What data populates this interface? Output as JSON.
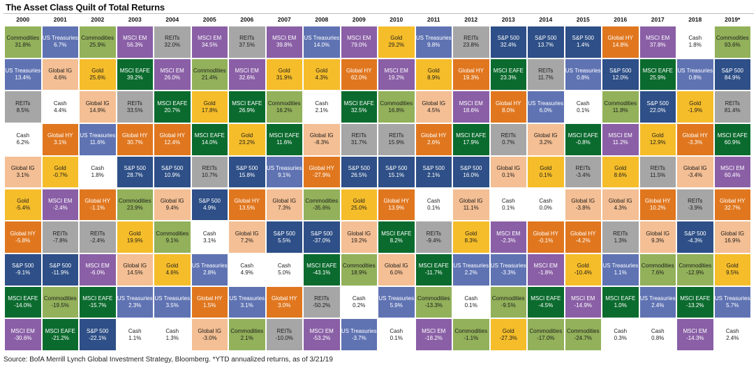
{
  "title": "The Asset Class Quilt of Total Returns",
  "source": "Source: BofA Merrill Lynch Global Investment Strategy, Bloomberg. *YTD annualized returns, as of 3/21/19",
  "colors": {
    "Commodities": "#92b15a",
    "US Treasuries": "#5f73b3",
    "Global IG": "#f4bf94",
    "MSCI EM": "#8a5fa6",
    "REITs": "#a6a6a6",
    "Gold": "#f5bd2a",
    "Cash": "#ffffff",
    "MSCI EAFE": "#0b6b2e",
    "Global HY": "#e0771f",
    "S&P 500": "#2e4f87"
  },
  "chart_data": {
    "type": "table",
    "title": "The Asset Class Quilt of Total Returns",
    "years": [
      "2000",
      "2001",
      "2002",
      "2003",
      "2004",
      "2005",
      "2006",
      "2007",
      "2008",
      "2009",
      "2010",
      "2011",
      "2012",
      "2013",
      "2014",
      "2015",
      "2016",
      "2017",
      "2018",
      "2019*"
    ],
    "columns": [
      [
        [
          "Commodities",
          "31.8%"
        ],
        [
          "US Treasuries",
          "13.4%"
        ],
        [
          "REITs",
          "8.5%"
        ],
        [
          "Cash",
          "6.2%"
        ],
        [
          "Global IG",
          "3.1%"
        ],
        [
          "Gold",
          "-5.4%"
        ],
        [
          "Global HY",
          "-5.8%"
        ],
        [
          "S&P 500",
          "-9.1%"
        ],
        [
          "MSCI EAFE",
          "-14.0%"
        ],
        [
          "MSCI EM",
          "-30.6%"
        ]
      ],
      [
        [
          "US Treasuries",
          "6.7%"
        ],
        [
          "Global IG",
          "4.6%"
        ],
        [
          "Cash",
          "4.4%"
        ],
        [
          "Global HY",
          "3.1%"
        ],
        [
          "Gold",
          "-0.7%"
        ],
        [
          "MSCI EM",
          "-2.4%"
        ],
        [
          "REITs",
          "-7.8%"
        ],
        [
          "S&P 500",
          "-11.9%"
        ],
        [
          "Commodities",
          "-19.5%"
        ],
        [
          "MSCI EAFE",
          "-21.2%"
        ]
      ],
      [
        [
          "Commodities",
          "25.9%"
        ],
        [
          "Gold",
          "25.6%"
        ],
        [
          "Global IG",
          "14.9%"
        ],
        [
          "US Treasuries",
          "11.6%"
        ],
        [
          "Cash",
          "1.8%"
        ],
        [
          "Global HY",
          "-1.1%"
        ],
        [
          "REITs",
          "-2.4%"
        ],
        [
          "MSCI EM",
          "-6.0%"
        ],
        [
          "MSCI EAFE",
          "-15.7%"
        ],
        [
          "S&P 500",
          "-22.1%"
        ]
      ],
      [
        [
          "MSCI EM",
          "56.3%"
        ],
        [
          "MSCI EAFE",
          "39.2%"
        ],
        [
          "REITs",
          "33.5%"
        ],
        [
          "Global HY",
          "30.7%"
        ],
        [
          "S&P 500",
          "28.7%"
        ],
        [
          "Commodities",
          "23.9%"
        ],
        [
          "Gold",
          "19.9%"
        ],
        [
          "Global IG",
          "14.5%"
        ],
        [
          "US Treasuries",
          "2.3%"
        ],
        [
          "Cash",
          "1.1%"
        ]
      ],
      [
        [
          "REITs",
          "32.0%"
        ],
        [
          "MSCI EM",
          "26.0%"
        ],
        [
          "MSCI EAFE",
          "20.7%"
        ],
        [
          "Global HY",
          "12.4%"
        ],
        [
          "S&P 500",
          "10.9%"
        ],
        [
          "Global IG",
          "9.4%"
        ],
        [
          "Commodities",
          "9.1%"
        ],
        [
          "Gold",
          "4.6%"
        ],
        [
          "US Treasuries",
          "3.5%"
        ],
        [
          "Cash",
          "1.3%"
        ]
      ],
      [
        [
          "MSCI EM",
          "34.5%"
        ],
        [
          "Commodities",
          "21.4%"
        ],
        [
          "Gold",
          "17.8%"
        ],
        [
          "MSCI EAFE",
          "14.0%"
        ],
        [
          "REITs",
          "10.7%"
        ],
        [
          "S&P 500",
          "4.9%"
        ],
        [
          "Cash",
          "3.1%"
        ],
        [
          "US Treasuries",
          "2.8%"
        ],
        [
          "Global HY",
          "1.5%"
        ],
        [
          "Global IG",
          "-3.0%"
        ]
      ],
      [
        [
          "REITs",
          "37.5%"
        ],
        [
          "MSCI EM",
          "32.6%"
        ],
        [
          "MSCI EAFE",
          "26.9%"
        ],
        [
          "Gold",
          "23.2%"
        ],
        [
          "S&P 500",
          "15.8%"
        ],
        [
          "Global HY",
          "13.5%"
        ],
        [
          "Global IG",
          "7.2%"
        ],
        [
          "Cash",
          "4.9%"
        ],
        [
          "US Treasuries",
          "3.1%"
        ],
        [
          "Commodities",
          "2.1%"
        ]
      ],
      [
        [
          "MSCI EM",
          "39.8%"
        ],
        [
          "Gold",
          "31.9%"
        ],
        [
          "Commodities",
          "16.2%"
        ],
        [
          "MSCI EAFE",
          "11.6%"
        ],
        [
          "US Treasuries",
          "9.1%"
        ],
        [
          "Global IG",
          "7.3%"
        ],
        [
          "S&P 500",
          "5.5%"
        ],
        [
          "Cash",
          "5.0%"
        ],
        [
          "Global HY",
          "3.0%"
        ],
        [
          "REITs",
          "-10.0%"
        ]
      ],
      [
        [
          "US Treasuries",
          "14.0%"
        ],
        [
          "Gold",
          "4.3%"
        ],
        [
          "Cash",
          "2.1%"
        ],
        [
          "Global IG",
          "-8.3%"
        ],
        [
          "Global HY",
          "-27.9%"
        ],
        [
          "Commodities",
          "-35.6%"
        ],
        [
          "S&P 500",
          "-37.0%"
        ],
        [
          "MSCI EAFE",
          "-43.1%"
        ],
        [
          "REITs",
          "-50.2%"
        ],
        [
          "MSCI EM",
          "-53.2%"
        ]
      ],
      [
        [
          "MSCI EM",
          "79.0%"
        ],
        [
          "Global HY",
          "62.0%"
        ],
        [
          "MSCI EAFE",
          "32.5%"
        ],
        [
          "REITs",
          "31.7%"
        ],
        [
          "S&P 500",
          "26.5%"
        ],
        [
          "Gold",
          "25.0%"
        ],
        [
          "Global IG",
          "19.2%"
        ],
        [
          "Commodities",
          "18.9%"
        ],
        [
          "Cash",
          "0.2%"
        ],
        [
          "US Treasuries",
          "-3.7%"
        ]
      ],
      [
        [
          "Gold",
          "29.2%"
        ],
        [
          "MSCI EM",
          "19.2%"
        ],
        [
          "Commodities",
          "16.8%"
        ],
        [
          "REITs",
          "15.9%"
        ],
        [
          "S&P 500",
          "15.1%"
        ],
        [
          "Global HY",
          "13.9%"
        ],
        [
          "MSCI EAFE",
          "8.2%"
        ],
        [
          "Global IG",
          "6.0%"
        ],
        [
          "US Treasuries",
          "5.9%"
        ],
        [
          "Cash",
          "0.1%"
        ]
      ],
      [
        [
          "US Treasuries",
          "9.8%"
        ],
        [
          "Gold",
          "8.9%"
        ],
        [
          "Global IG",
          "4.5%"
        ],
        [
          "Global HY",
          "2.6%"
        ],
        [
          "S&P 500",
          "2.1%"
        ],
        [
          "Cash",
          "0.1%"
        ],
        [
          "REITs",
          "-9.4%"
        ],
        [
          "MSCI EAFE",
          "-11.7%"
        ],
        [
          "Commodities",
          "-13.3%"
        ],
        [
          "MSCI EM",
          "-18.2%"
        ]
      ],
      [
        [
          "REITs",
          "23.8%"
        ],
        [
          "Global HY",
          "19.3%"
        ],
        [
          "MSCI EM",
          "18.6%"
        ],
        [
          "MSCI EAFE",
          "17.9%"
        ],
        [
          "S&P 500",
          "16.0%"
        ],
        [
          "Global IG",
          "11.1%"
        ],
        [
          "Gold",
          "8.3%"
        ],
        [
          "US Treasuries",
          "2.2%"
        ],
        [
          "Cash",
          "0.1%"
        ],
        [
          "Commodities",
          "-1.1%"
        ]
      ],
      [
        [
          "S&P 500",
          "32.4%"
        ],
        [
          "MSCI EAFE",
          "23.3%"
        ],
        [
          "Global HY",
          "8.0%"
        ],
        [
          "REITs",
          "0.7%"
        ],
        [
          "Global IG",
          "0.1%"
        ],
        [
          "Cash",
          "0.1%"
        ],
        [
          "MSCI EM",
          "-2.3%"
        ],
        [
          "US Treasuries",
          "-3.3%"
        ],
        [
          "Commodities",
          "-9.5%"
        ],
        [
          "Gold",
          "-27.3%"
        ]
      ],
      [
        [
          "S&P 500",
          "13.7%"
        ],
        [
          "REITs",
          "11.7%"
        ],
        [
          "US Treasuries",
          "6.0%"
        ],
        [
          "Global IG",
          "3.2%"
        ],
        [
          "Gold",
          "0.1%"
        ],
        [
          "Cash",
          "0.0%"
        ],
        [
          "Global HY",
          "-0.1%"
        ],
        [
          "MSCI EM",
          "-1.8%"
        ],
        [
          "MSCI EAFE",
          "-4.5%"
        ],
        [
          "Commodities",
          "-17.0%"
        ]
      ],
      [
        [
          "S&P 500",
          "1.4%"
        ],
        [
          "US Treasuries",
          "0.8%"
        ],
        [
          "Cash",
          "0.1%"
        ],
        [
          "MSCI EAFE",
          "-0.8%"
        ],
        [
          "REITs",
          "-3.4%"
        ],
        [
          "Global IG",
          "-3.8%"
        ],
        [
          "Global HY",
          "-4.2%"
        ],
        [
          "Gold",
          "-10.4%"
        ],
        [
          "MSCI EM",
          "-14.9%"
        ],
        [
          "Commodities",
          "-24.7%"
        ]
      ],
      [
        [
          "Global HY",
          "14.8%"
        ],
        [
          "S&P 500",
          "12.0%"
        ],
        [
          "Commodities",
          "11.8%"
        ],
        [
          "MSCI EM",
          "11.2%"
        ],
        [
          "Gold",
          "8.6%"
        ],
        [
          "Global IG",
          "4.3%"
        ],
        [
          "REITs",
          "1.3%"
        ],
        [
          "US Treasuries",
          "1.1%"
        ],
        [
          "MSCI EAFE",
          "1.0%"
        ],
        [
          "Cash",
          "0.3%"
        ]
      ],
      [
        [
          "MSCI EM",
          "37.8%"
        ],
        [
          "MSCI EAFE",
          "25.9%"
        ],
        [
          "S&P 500",
          "22.0%"
        ],
        [
          "Gold",
          "12.9%"
        ],
        [
          "REITs",
          "11.5%"
        ],
        [
          "Global HY",
          "10.2%"
        ],
        [
          "Global IG",
          "9.3%"
        ],
        [
          "Commodities",
          "7.6%"
        ],
        [
          "US Treasuries",
          "2.4%"
        ],
        [
          "Cash",
          "0.8%"
        ]
      ],
      [
        [
          "Cash",
          "1.8%"
        ],
        [
          "US Treasuries",
          "0.8%"
        ],
        [
          "Gold",
          "-1.9%"
        ],
        [
          "Global HY",
          "-3.3%"
        ],
        [
          "Global IG",
          "-3.4%"
        ],
        [
          "REITs",
          "-3.9%"
        ],
        [
          "S&P 500",
          "-4.3%"
        ],
        [
          "Commodities",
          "-12.9%"
        ],
        [
          "MSCI EAFE",
          "-13.2%"
        ],
        [
          "MSCI EM",
          "-14.3%"
        ]
      ],
      [
        [
          "Commodities",
          "93.6%"
        ],
        [
          "S&P 500",
          "84.9%"
        ],
        [
          "REITs",
          "81.4%"
        ],
        [
          "MSCI EAFE",
          "60.9%"
        ],
        [
          "MSCI EM",
          "60.4%"
        ],
        [
          "Global HY",
          "32.7%"
        ],
        [
          "Global IG",
          "16.9%"
        ],
        [
          "Gold",
          "9.5%"
        ],
        [
          "US Treasuries",
          "5.7%"
        ],
        [
          "Cash",
          "2.4%"
        ]
      ]
    ]
  }
}
